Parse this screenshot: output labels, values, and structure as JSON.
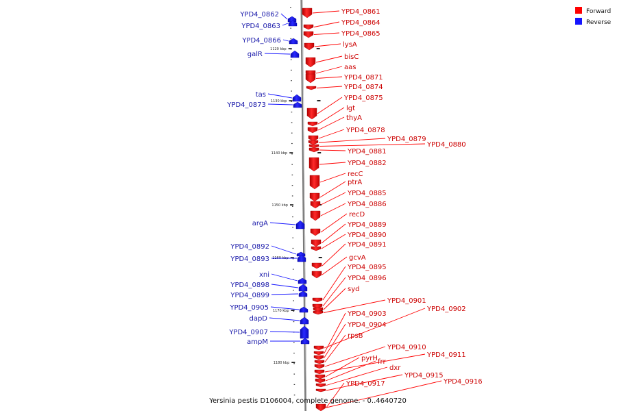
{
  "caption": "Yersinia pestis D106004, complete genome. - 0..4640720",
  "legend": [
    {
      "label": "Forward",
      "color": "#ff0000"
    },
    {
      "label": "Reverse",
      "color": "#1414ff"
    }
  ],
  "colors": {
    "forward": "#ff0000",
    "reverse": "#1414ff",
    "backbone": "#999999"
  },
  "scale_labels": [
    "1120 kbp",
    "1130 kbp",
    "1140 kbp",
    "1150 kbp",
    "1160 kbp",
    "1170 kbp",
    "1180 kbp"
  ],
  "forward_genes": [
    "YPD4_0861",
    "YPD4_0864",
    "YPD4_0865",
    "lysA",
    "bisC",
    "aas",
    "YPD4_0871",
    "YPD4_0874",
    "YPD4_0875",
    "lgt",
    "thyA",
    "YPD4_0878",
    "YPD4_0879",
    "YPD4_0880",
    "YPD4_0881",
    "YPD4_0882",
    "recC",
    "ptrA",
    "YPD4_0885",
    "YPD4_0886",
    "recD",
    "YPD4_0889",
    "YPD4_0890",
    "YPD4_0891",
    "gcvA",
    "YPD4_0895",
    "YPD4_0896",
    "syd",
    "YPD4_0901",
    "YPD4_0902",
    "YPD4_0903",
    "YPD4_0904",
    "rpsB",
    "YPD4_0910",
    "YPD4_0911",
    "pyrH",
    "frr",
    "dxr",
    "YPD4_0915",
    "YPD4_0916",
    "YPD4_0917"
  ],
  "reverse_genes": [
    "YPD4_0862",
    "YPD4_0863",
    "YPD4_0866",
    "galR",
    "tas",
    "YPD4_0873",
    "argA",
    "YPD4_0892",
    "YPD4_0893",
    "xni",
    "YPD4_0898",
    "YPD4_0899",
    "YPD4_0905",
    "dapD",
    "YPD4_0907",
    "ampM"
  ]
}
